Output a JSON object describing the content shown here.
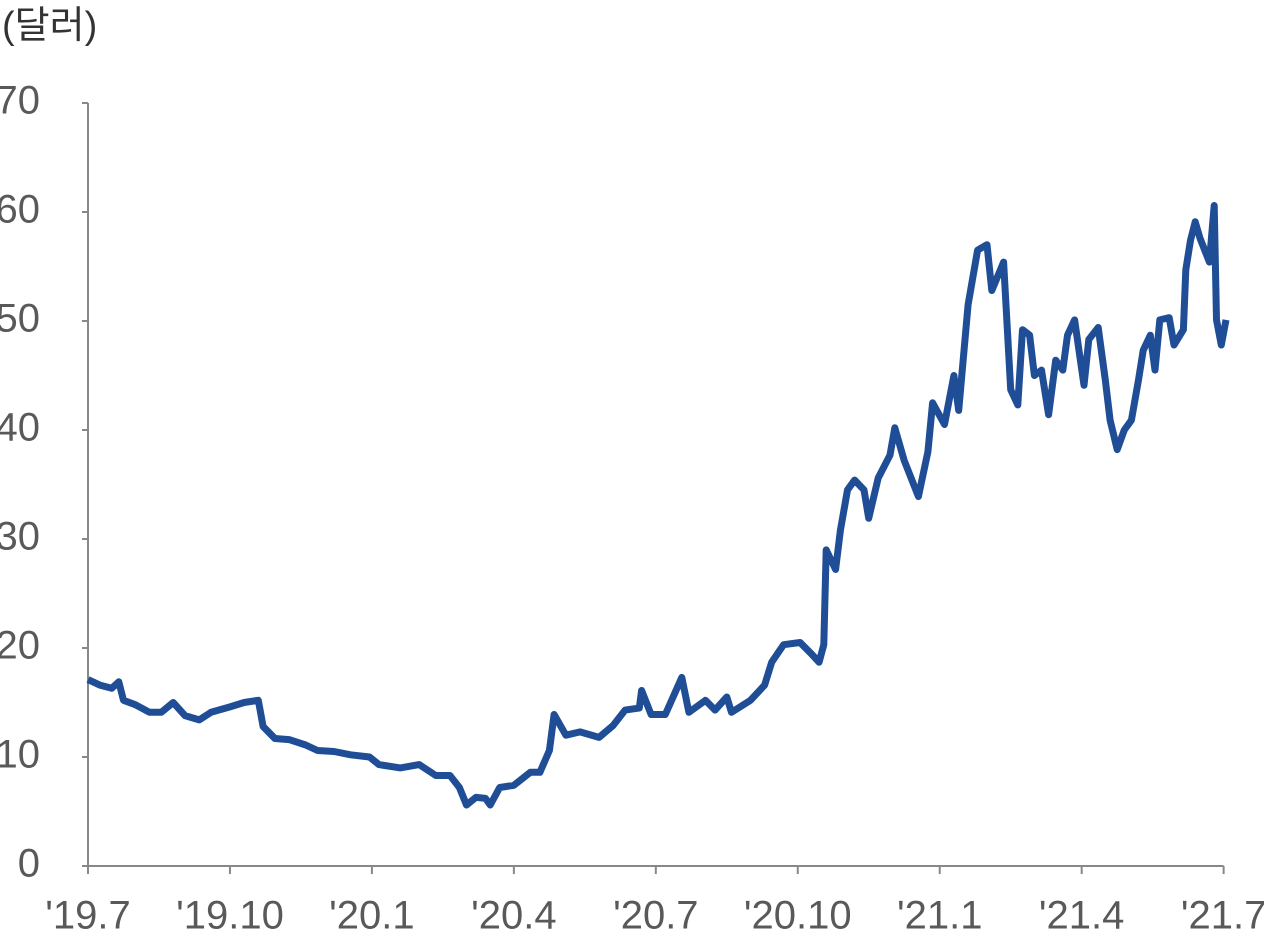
{
  "chart_data": {
    "type": "line",
    "y_label": "(달러)",
    "x": [
      0,
      0.25,
      0.5,
      0.65,
      0.75,
      1.0,
      1.3,
      1.55,
      1.8,
      2.05,
      2.35,
      2.6,
      3.0,
      3.3,
      3.6,
      3.7,
      3.95,
      4.25,
      4.6,
      4.85,
      5.2,
      5.55,
      5.95,
      6.15,
      6.6,
      7.0,
      7.35,
      7.65,
      7.85,
      8.0,
      8.2,
      8.4,
      8.5,
      8.7,
      9.0,
      9.35,
      9.55,
      9.75,
      9.85,
      10.1,
      10.4,
      10.8,
      11.1,
      11.35,
      11.65,
      11.7,
      11.9,
      12.2,
      12.55,
      12.7,
      13.05,
      13.25,
      13.5,
      13.6,
      14.0,
      14.3,
      14.45,
      14.7,
      15.05,
      15.3,
      15.45,
      15.55,
      15.6,
      15.8,
      15.9,
      16.05,
      16.2,
      16.4,
      16.5,
      16.7,
      16.95,
      17.05,
      17.25,
      17.55,
      17.75,
      17.85,
      18.1,
      18.3,
      18.4,
      18.6,
      18.8,
      19.0,
      19.1,
      19.35,
      19.5,
      19.65,
      19.75,
      19.9,
      20.0,
      20.15,
      20.3,
      20.45,
      20.6,
      20.7,
      20.85,
      21.05,
      21.15,
      21.35,
      21.5,
      21.6,
      21.75,
      21.9,
      22.05,
      22.2,
      22.3,
      22.45,
      22.55,
      22.65,
      22.85,
      22.95,
      23.15,
      23.2,
      23.3,
      23.4,
      23.5,
      23.7,
      23.8,
      23.85,
      23.95,
      24.05
    ],
    "series": [
      {
        "color": "#1f4e96",
        "values": [
          17.1,
          16.6,
          16.3,
          16.9,
          15.2,
          14.8,
          14.1,
          14.1,
          15.0,
          13.8,
          13.4,
          14.1,
          14.6,
          15.0,
          15.2,
          12.8,
          11.7,
          11.6,
          11.1,
          10.6,
          10.5,
          10.2,
          10.0,
          9.3,
          9.0,
          9.3,
          8.3,
          8.3,
          7.2,
          5.6,
          6.3,
          6.2,
          5.6,
          7.2,
          7.4,
          8.6,
          8.6,
          10.6,
          13.9,
          12.0,
          12.3,
          11.8,
          12.9,
          14.3,
          14.5,
          16.1,
          13.9,
          13.9,
          17.3,
          14.1,
          15.2,
          14.3,
          15.5,
          14.1,
          15.2,
          16.6,
          18.7,
          20.3,
          20.5,
          19.4,
          18.7,
          20.3,
          29.0,
          27.2,
          30.8,
          34.5,
          35.4,
          34.5,
          31.9,
          35.6,
          37.7,
          40.2,
          37.2,
          33.9,
          38.0,
          42.5,
          40.5,
          45.0,
          41.8,
          51.5,
          56.5,
          57.0,
          52.8,
          55.4,
          43.7,
          42.3,
          49.2,
          48.7,
          45.0,
          45.5,
          41.4,
          46.4,
          45.5,
          48.7,
          50.1,
          44.1,
          48.3,
          49.4,
          44.6,
          40.9,
          38.2,
          40.0,
          40.9,
          44.6,
          47.3,
          48.7,
          45.5,
          50.1,
          50.3,
          47.8,
          49.2,
          54.7,
          57.4,
          59.1,
          57.6,
          55.4,
          60.6,
          50.1,
          47.8,
          50.1
        ]
      }
    ],
    "xlim": [
      0,
      24.05
    ],
    "xticks": [
      {
        "value": 0,
        "label": "'19.7"
      },
      {
        "value": 3,
        "label": "'19.10"
      },
      {
        "value": 6,
        "label": "'20.1"
      },
      {
        "value": 9,
        "label": "'20.4"
      },
      {
        "value": 12,
        "label": "'20.7"
      },
      {
        "value": 15,
        "label": "'20.10"
      },
      {
        "value": 18,
        "label": "'21.1"
      },
      {
        "value": 21,
        "label": "'21.4"
      },
      {
        "value": 24,
        "label": "'21.7"
      }
    ],
    "ylim": [
      0,
      70
    ],
    "yticks": [
      0,
      10,
      20,
      30,
      40,
      50,
      60,
      70
    ]
  }
}
